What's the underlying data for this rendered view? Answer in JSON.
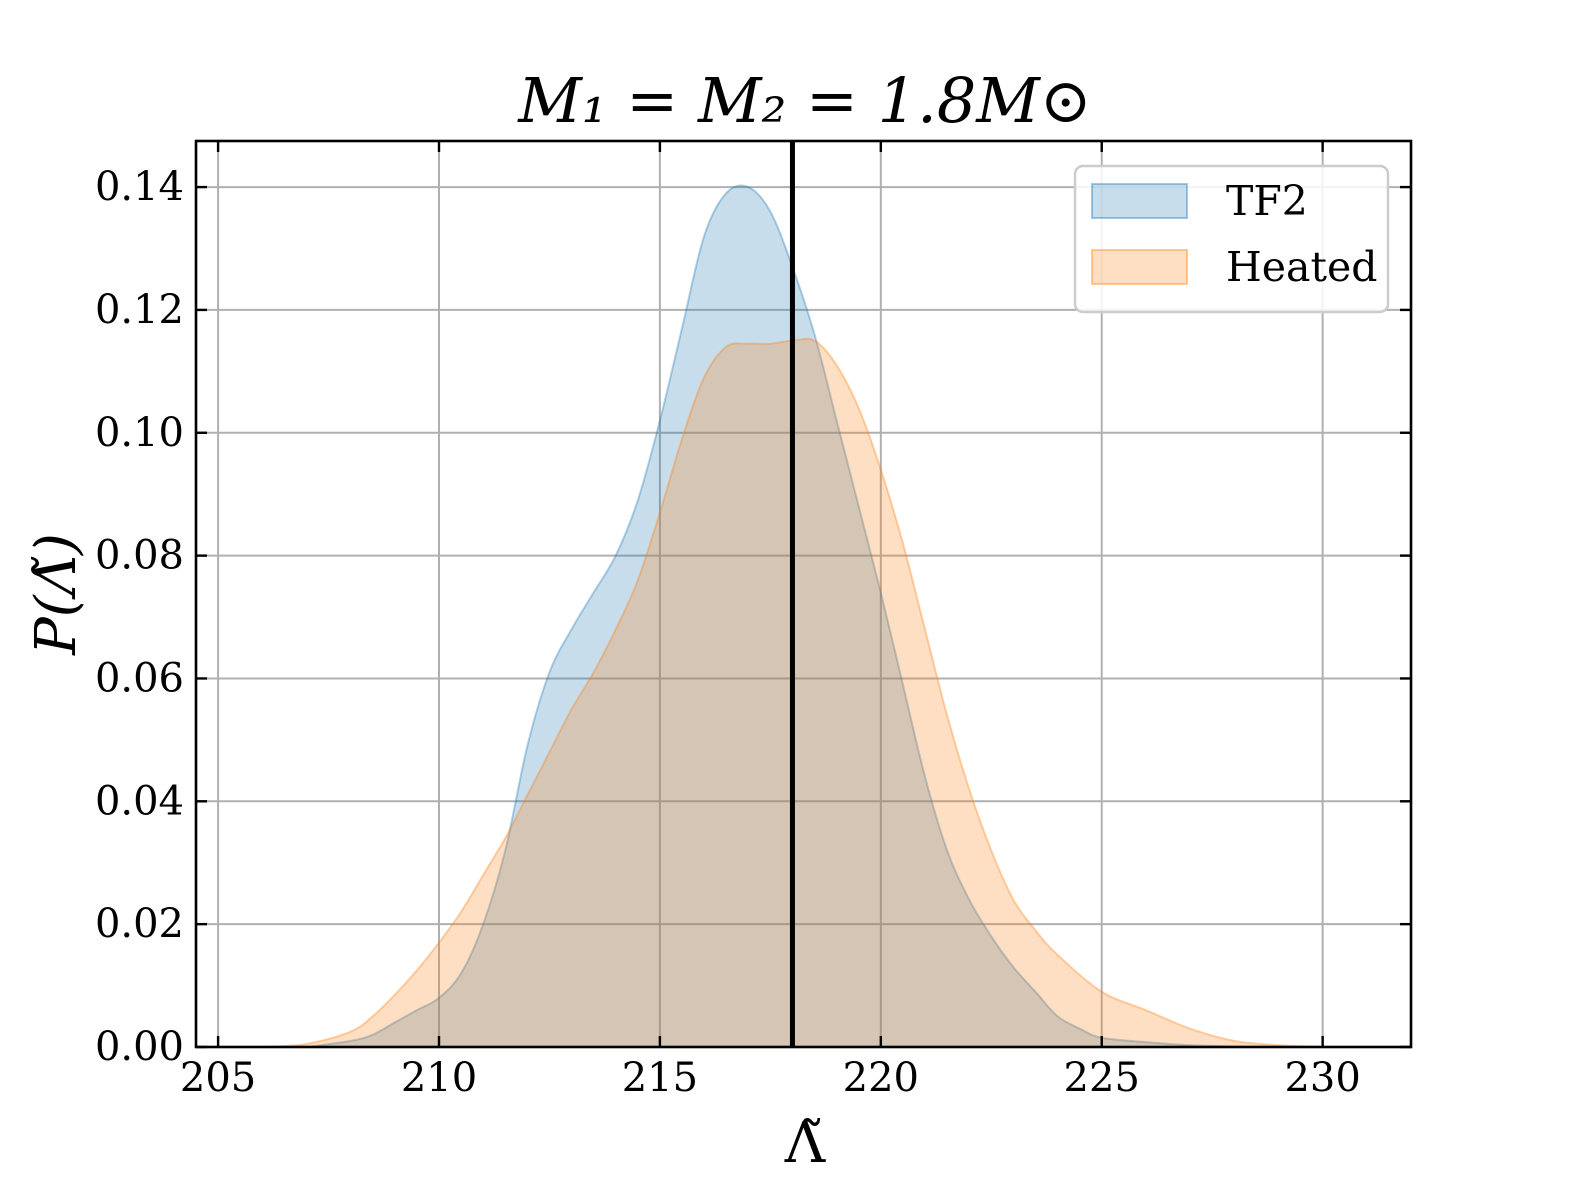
{
  "chart_data": {
    "type": "area",
    "title": "M₁ = M₂ = 1.8M⊙",
    "xlabel": "Λ̃",
    "ylabel": "P(Λ̃)",
    "xlim": [
      204.5,
      232
    ],
    "ylim": [
      0,
      0.1475
    ],
    "xticks": [
      205,
      210,
      215,
      220,
      225,
      230
    ],
    "yticks": [
      0.0,
      0.02,
      0.04,
      0.06,
      0.08,
      0.1,
      0.12,
      0.14
    ],
    "xtick_labels": [
      "205",
      "210",
      "215",
      "220",
      "225",
      "230"
    ],
    "ytick_labels": [
      "0.00",
      "0.02",
      "0.04",
      "0.06",
      "0.08",
      "0.10",
      "0.12",
      "0.14"
    ],
    "grid": true,
    "legend_position": "top-right",
    "vertical_line": {
      "x": 218.0,
      "color": "#000000"
    },
    "series": [
      {
        "name": "TF2",
        "color": "#1f77b4",
        "fill_opacity": 0.25,
        "x": [
          207,
          208,
          208.5,
          209,
          209.5,
          210,
          210.5,
          211,
          211.5,
          212,
          212.5,
          213,
          213.5,
          214,
          214.5,
          215,
          215.5,
          216,
          216.5,
          217,
          217.5,
          218,
          218.5,
          219,
          219.5,
          220,
          220.5,
          221,
          221.5,
          222,
          222.5,
          223,
          223.5,
          224,
          224.5,
          225,
          226,
          227,
          228,
          229
        ],
        "y": [
          0.0,
          0.001,
          0.002,
          0.004,
          0.006,
          0.008,
          0.012,
          0.02,
          0.032,
          0.049,
          0.061,
          0.068,
          0.074,
          0.08,
          0.089,
          0.102,
          0.117,
          0.132,
          0.139,
          0.14,
          0.136,
          0.127,
          0.116,
          0.102,
          0.088,
          0.074,
          0.059,
          0.044,
          0.032,
          0.024,
          0.018,
          0.013,
          0.009,
          0.005,
          0.003,
          0.0015,
          0.0008,
          0.0003,
          0.0001,
          0.0
        ]
      },
      {
        "name": "Heated",
        "color": "#ff7f0e",
        "fill_opacity": 0.25,
        "x": [
          206,
          207,
          208,
          208.5,
          209,
          209.5,
          210,
          210.5,
          211,
          211.5,
          212,
          212.5,
          213,
          213.5,
          214,
          214.5,
          215,
          215.5,
          216,
          216.5,
          217,
          217.5,
          218,
          218.5,
          219,
          219.5,
          220,
          220.5,
          221,
          221.5,
          222,
          222.5,
          223,
          223.5,
          224,
          225,
          226,
          227,
          228,
          229,
          230
        ],
        "y": [
          0.0,
          0.0005,
          0.0025,
          0.005,
          0.0085,
          0.0125,
          0.017,
          0.022,
          0.028,
          0.034,
          0.041,
          0.048,
          0.055,
          0.061,
          0.068,
          0.076,
          0.087,
          0.099,
          0.109,
          0.114,
          0.1145,
          0.1145,
          0.115,
          0.115,
          0.111,
          0.104,
          0.094,
          0.082,
          0.068,
          0.054,
          0.042,
          0.032,
          0.024,
          0.019,
          0.015,
          0.009,
          0.006,
          0.003,
          0.001,
          0.0003,
          0.0
        ]
      }
    ]
  }
}
